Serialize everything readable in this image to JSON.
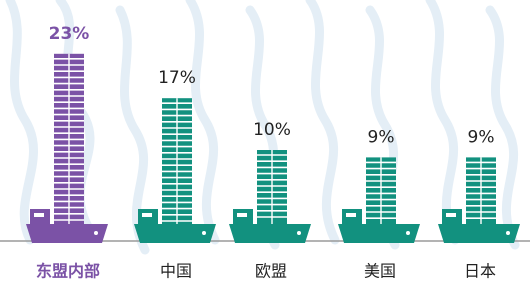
{
  "chart_data": {
    "type": "ship-bar",
    "categories": [
      "东盟内部",
      "中国",
      "欧盟",
      "美国",
      "日本"
    ],
    "values": [
      23,
      17,
      10,
      9,
      9
    ],
    "value_labels": [
      "23%",
      "17%",
      "10%",
      "9%",
      "9%"
    ],
    "color": "#12917f",
    "highlight_color": "#7b52a6",
    "highlight_index": 0
  }
}
